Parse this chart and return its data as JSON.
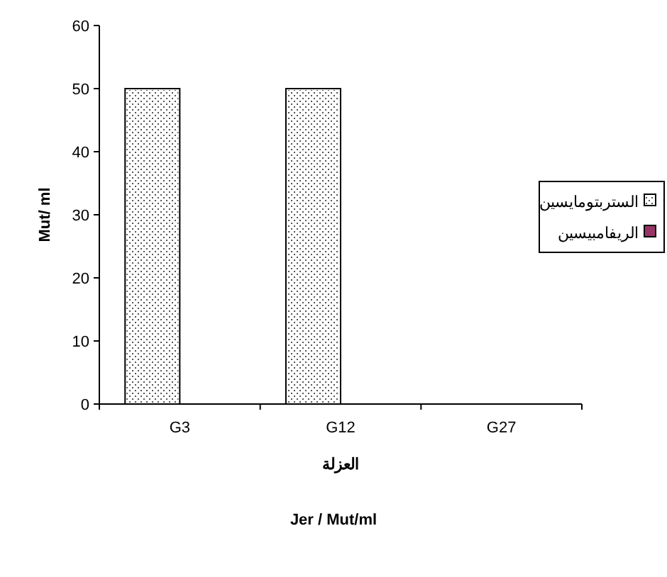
{
  "chart_data": {
    "type": "bar",
    "xlabel": "العزلة",
    "ylabel": "Mut/ ml",
    "categories": [
      "G3",
      "G12",
      "G27"
    ],
    "series": [
      {
        "name": "الستربتومايسين",
        "color": "#ffffff",
        "values": [
          50,
          50,
          0
        ]
      },
      {
        "name": "الريفامبيسين",
        "color": "#993366",
        "values": [
          0,
          0,
          0
        ]
      }
    ],
    "ylim": [
      0,
      60
    ],
    "yticks": [
      0,
      10,
      20,
      30,
      40,
      50,
      60
    ],
    "legend": "right",
    "grid": false,
    "annotations": [
      "Jer / Mut/ml"
    ]
  }
}
